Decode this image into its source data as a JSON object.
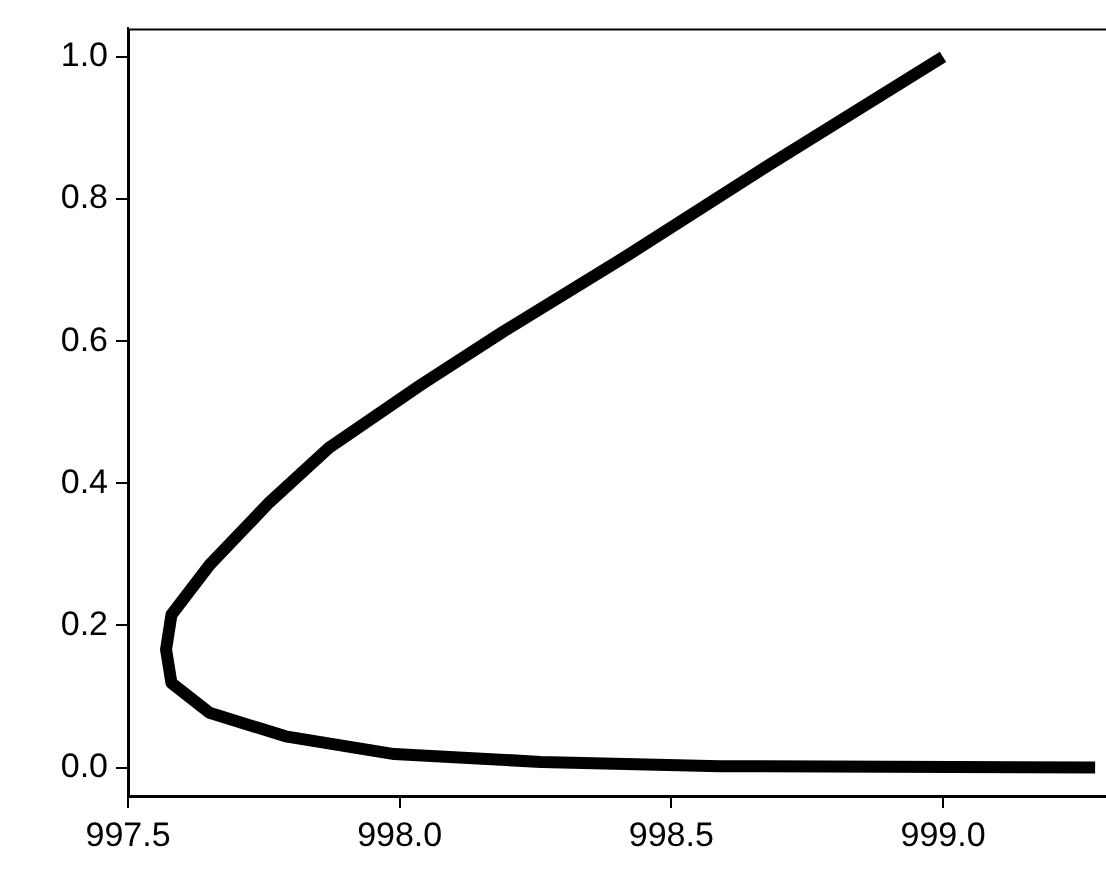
{
  "chart_data": {
    "type": "line",
    "grid": false,
    "legend": false,
    "marker": "none",
    "line_style": "solid",
    "xlim": [
      997.5,
      999.3
    ],
    "ylim": [
      -0.04,
      1.04
    ],
    "xticks": [
      {
        "value": 997.5,
        "label": "997.5"
      },
      {
        "value": 998,
        "label": "998.0"
      },
      {
        "value": 998.5,
        "label": "998.5"
      },
      {
        "value": 999,
        "label": "999.0"
      }
    ],
    "yticks": [
      {
        "value": 0,
        "label": "0.0"
      },
      {
        "value": 0.2,
        "label": "0.2"
      },
      {
        "value": 0.4,
        "label": "0.4"
      },
      {
        "value": 0.6,
        "label": "0.6"
      },
      {
        "value": 0.8,
        "label": "0.8"
      },
      {
        "value": 1,
        "label": "1.0"
      }
    ],
    "series": [
      {
        "color": "#000000",
        "x": [
          999.0,
          998.68,
          998.42,
          998.19,
          998.04,
          997.87,
          997.76,
          997.65,
          997.58,
          997.57,
          997.58,
          997.65,
          997.79,
          997.99,
          998.26,
          998.59,
          999.28
        ],
        "values": [
          1.0,
          0.848,
          0.721,
          0.613,
          0.539,
          0.45,
          0.373,
          0.285,
          0.215,
          0.166,
          0.119,
          0.077,
          0.044,
          0.019,
          0.008,
          0.002,
          0.0
        ]
      }
    ]
  }
}
